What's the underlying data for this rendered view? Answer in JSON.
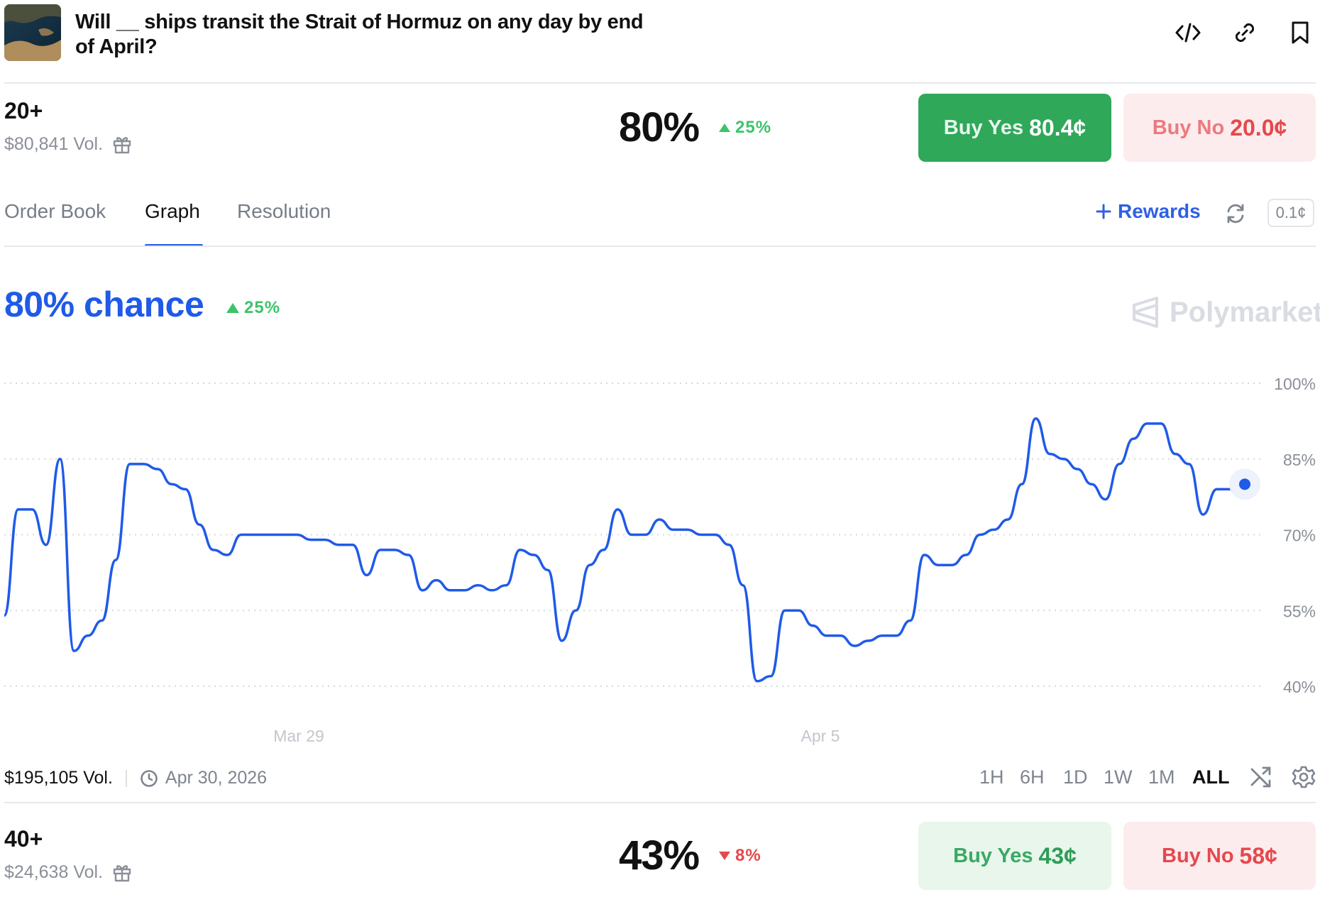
{
  "header": {
    "title": "Will __ ships transit the Strait of Hormuz on any day by end of April?",
    "icons": [
      "embed-code-icon",
      "link-icon",
      "bookmark-icon"
    ]
  },
  "outcome1": {
    "name": "20+",
    "volume": "$80,841 Vol.",
    "probability": "80%",
    "change": "25%",
    "change_dir": "up",
    "buy_yes_label": "Buy Yes",
    "buy_yes_price": "80.4¢",
    "buy_no_label": "Buy No",
    "buy_no_price": "20.0¢"
  },
  "tabs": {
    "order_book": "Order Book",
    "graph": "Graph",
    "resolution": "Resolution",
    "active": "Graph"
  },
  "toolbar": {
    "rewards_label": "Rewards",
    "tick_size": "0.1¢"
  },
  "graph": {
    "chance_label": "80% chance",
    "change": "25%",
    "brand": "Polymarket",
    "footer_volume": "$195,105 Vol.",
    "end_date": "Apr 30, 2026",
    "ranges": [
      "1H",
      "6H",
      "1D",
      "1W",
      "1M",
      "ALL"
    ],
    "active_range": "ALL"
  },
  "outcome2": {
    "name": "40+",
    "volume": "$24,638 Vol.",
    "probability": "43%",
    "change": "8%",
    "change_dir": "down",
    "buy_yes_label": "Buy Yes",
    "buy_yes_price": "43¢",
    "buy_no_label": "Buy No",
    "buy_no_price": "58¢"
  },
  "colors": {
    "accent_blue": "#1f5ae8",
    "up_green": "#3cc46a",
    "down_red": "#e5484d",
    "buy_yes_green": "#2fa85a",
    "buy_no_bg": "#fdeced",
    "buy_no_text": "#e5484d"
  },
  "chart_data": {
    "type": "line",
    "x_tick_labels": [
      "Mar 29",
      "Apr 5"
    ],
    "y_tick_labels": [
      "100%",
      "85%",
      "70%",
      "55%",
      "40%"
    ],
    "ylim": [
      40,
      100
    ],
    "grid": true,
    "series": [
      {
        "values": [
          54,
          75,
          75,
          68,
          85,
          47,
          50,
          53,
          65,
          84,
          84,
          83,
          80,
          79,
          72,
          67,
          66,
          70,
          70,
          70,
          70,
          70,
          69,
          69,
          68,
          68,
          62,
          67,
          67,
          66,
          59,
          61,
          59,
          59,
          60,
          59,
          60,
          67,
          66,
          63,
          49,
          55,
          64,
          67,
          75,
          70,
          70,
          73,
          71,
          71,
          70,
          70,
          68,
          60,
          41,
          42,
          55,
          55,
          52,
          50,
          50,
          48,
          49,
          50,
          50,
          53,
          66,
          64,
          64,
          66,
          70,
          71,
          73,
          80,
          93,
          86,
          85,
          83,
          80,
          77,
          84,
          89,
          92,
          92,
          86,
          84,
          74,
          79,
          79,
          80
        ]
      }
    ]
  }
}
